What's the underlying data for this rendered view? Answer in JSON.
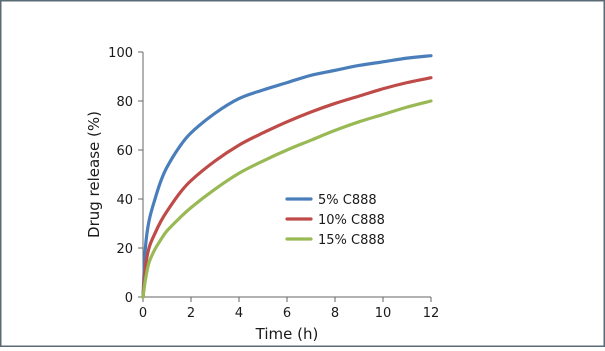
{
  "chart_data": {
    "type": "line",
    "xlabel": "Time (h)",
    "ylabel": "Drug release (%)",
    "xlim": [
      0,
      12
    ],
    "ylim": [
      0,
      100
    ],
    "xticks": [
      0,
      2,
      4,
      6,
      8,
      10,
      12
    ],
    "yticks": [
      0,
      20,
      40,
      60,
      80,
      100
    ],
    "grid": false,
    "legend_position": "inside-center-right",
    "x": [
      0,
      0.1,
      0.25,
      0.5,
      0.75,
      1,
      1.5,
      2,
      3,
      4,
      5,
      6,
      7,
      8,
      9,
      10,
      11,
      12
    ],
    "series": [
      {
        "name": "5% C888",
        "color": "#4a7ebb",
        "values": [
          0,
          20,
          31,
          40,
          47.5,
          53,
          61,
          67,
          75,
          81,
          84.5,
          87.5,
          90.5,
          92.5,
          94.5,
          96,
          97.5,
          98.5
        ]
      },
      {
        "name": "10% C888",
        "color": "#be4b48",
        "values": [
          0,
          12,
          20,
          26,
          31,
          35,
          42,
          47.5,
          55.5,
          62,
          67,
          71.5,
          75.5,
          79,
          82,
          85,
          87.5,
          89.5
        ]
      },
      {
        "name": "15% C888",
        "color": "#98b954",
        "values": [
          0,
          7,
          14,
          19.5,
          23.5,
          27,
          32,
          36.5,
          44,
          50.5,
          55.5,
          60,
          64,
          68,
          71.5,
          74.5,
          77.5,
          80
        ]
      }
    ]
  }
}
